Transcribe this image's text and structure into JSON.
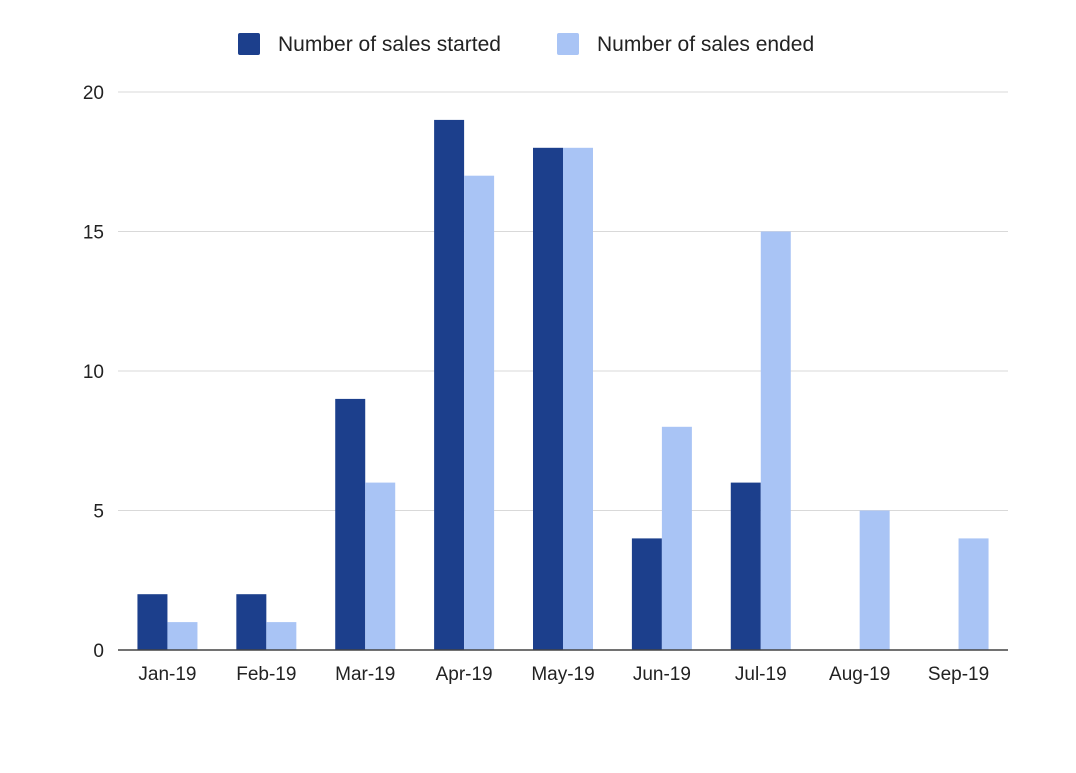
{
  "chart_data": {
    "type": "bar",
    "categories": [
      "Jan-19",
      "Feb-19",
      "Mar-19",
      "Apr-19",
      "May-19",
      "Jun-19",
      "Jul-19",
      "Aug-19",
      "Sep-19"
    ],
    "series": [
      {
        "name": "Number of sales started",
        "color": "#1c3f8c",
        "values": [
          2,
          2,
          9,
          19,
          18,
          4,
          6,
          0,
          0
        ]
      },
      {
        "name": "Number of sales ended",
        "color": "#a9c4f5",
        "values": [
          1,
          1,
          6,
          17,
          18,
          8,
          15,
          5,
          4
        ]
      }
    ],
    "y_ticks": [
      "0",
      "5",
      "10",
      "15",
      "20"
    ],
    "ylim": [
      0,
      20
    ],
    "grid": true,
    "legend_position": "top-center",
    "title": "",
    "xlabel": "",
    "ylabel": ""
  }
}
